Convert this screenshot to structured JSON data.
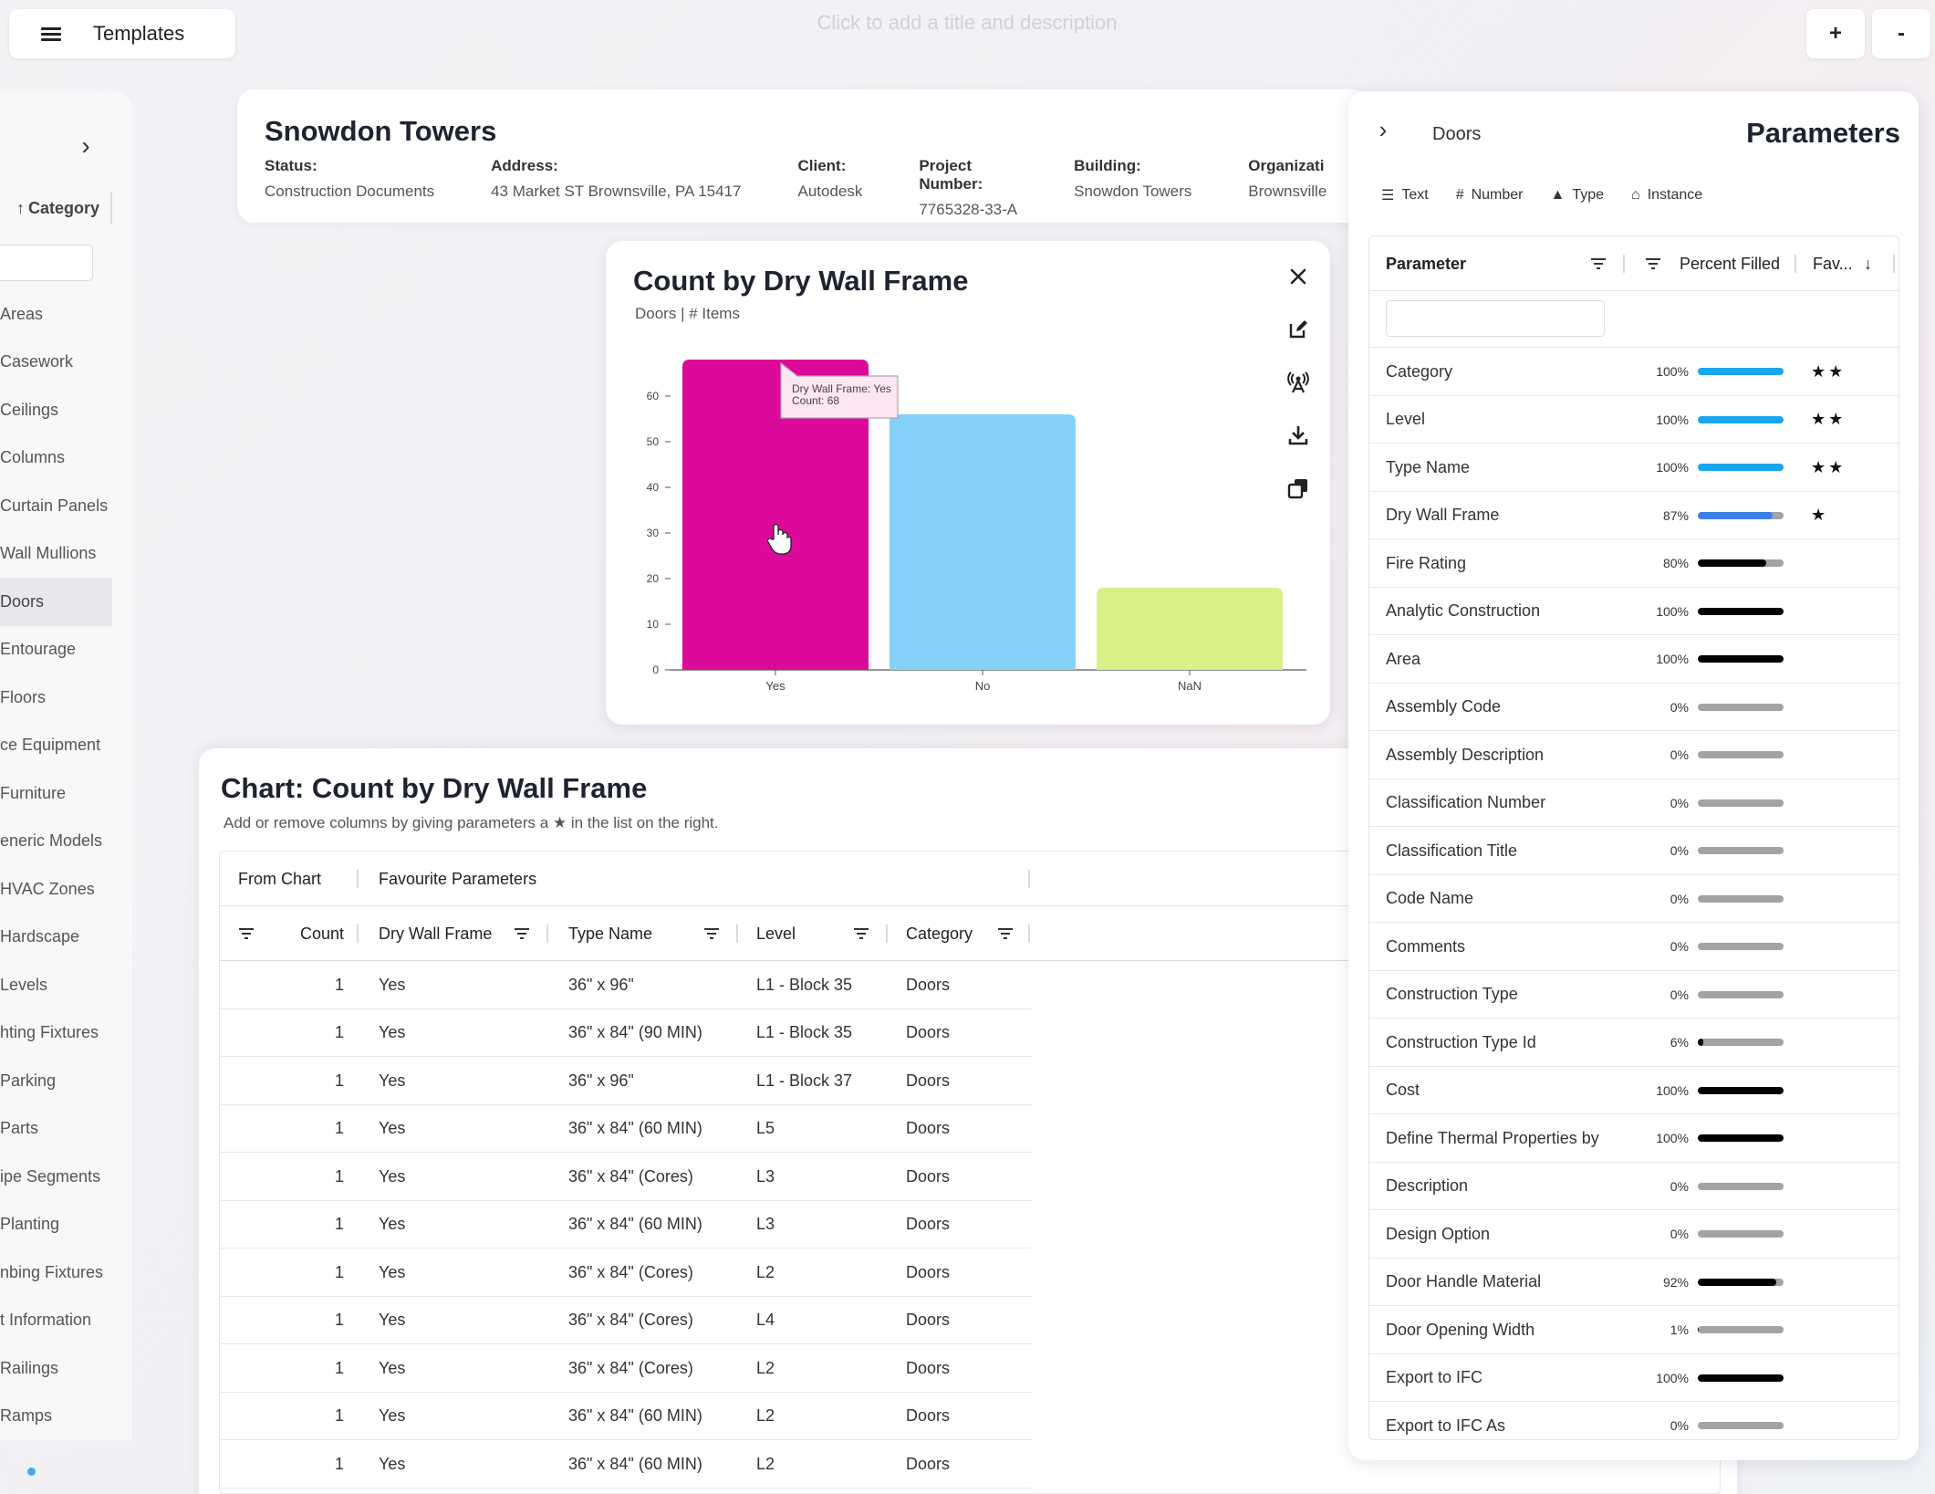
{
  "topbar": {
    "templates_label": "Templates",
    "title_hint": "Click to add a title and description",
    "zoom_in": "+",
    "zoom_out": "-"
  },
  "sidebar": {
    "sort_label": "Category",
    "items": [
      {
        "label": "Areas",
        "active": false
      },
      {
        "label": "Casework",
        "active": false
      },
      {
        "label": "Ceilings",
        "active": false
      },
      {
        "label": "Columns",
        "active": false
      },
      {
        "label": "Curtain Panels",
        "active": false
      },
      {
        "label": "Wall Mullions",
        "active": false
      },
      {
        "label": "Doors",
        "active": true
      },
      {
        "label": "Entourage",
        "active": false
      },
      {
        "label": "Floors",
        "active": false
      },
      {
        "label": "ce Equipment",
        "active": false
      },
      {
        "label": "Furniture",
        "active": false
      },
      {
        "label": "eneric Models",
        "active": false
      },
      {
        "label": "HVAC Zones",
        "active": false
      },
      {
        "label": "Hardscape",
        "active": false
      },
      {
        "label": "Levels",
        "active": false
      },
      {
        "label": "hting Fixtures",
        "active": false
      },
      {
        "label": "Parking",
        "active": false
      },
      {
        "label": "Parts",
        "active": false
      },
      {
        "label": "ipe Segments",
        "active": false
      },
      {
        "label": "Planting",
        "active": false
      },
      {
        "label": "nbing Fixtures",
        "active": false
      },
      {
        "label": "t Information",
        "active": false
      },
      {
        "label": "Railings",
        "active": false
      },
      {
        "label": "Ramps",
        "active": false
      }
    ]
  },
  "project": {
    "title": "Snowdon Towers",
    "fields": [
      {
        "label": "Status:",
        "value": "Construction Documents"
      },
      {
        "label": "Address:",
        "value": "43 Market ST Brownsville, PA 15417"
      },
      {
        "label": "Client:",
        "value": "Autodesk"
      },
      {
        "label": "Project Number:",
        "value": "7765328-33-A"
      },
      {
        "label": "Building:",
        "value": "Snowdon Towers"
      },
      {
        "label": "Organizati",
        "value": "Brownsville"
      }
    ]
  },
  "chart_card": {
    "title": "Count by Dry Wall Frame",
    "subtitle": "Doors | # Items",
    "tooltip_line1": "Dry Wall Frame: Yes",
    "tooltip_line2": "Count: 68"
  },
  "chart_data": {
    "type": "bar",
    "categories": [
      "Yes",
      "No",
      "NaN"
    ],
    "values": [
      68,
      56,
      18
    ],
    "colors": [
      "#dc0a9b",
      "#85d1fa",
      "#d8f088"
    ],
    "yticks": [
      0,
      10,
      20,
      30,
      40,
      50,
      60
    ],
    "ylim": [
      0,
      68
    ]
  },
  "table": {
    "title": "Chart: Count by Dry Wall Frame",
    "description": "Add or remove columns by giving parameters a ★ in the list on the right.",
    "group_headers": [
      "From Chart",
      "Favourite Parameters"
    ],
    "columns": [
      "Count",
      "Dry Wall Frame",
      "Type Name",
      "Level",
      "Category"
    ],
    "rows": [
      [
        "1",
        "Yes",
        "36\" x 96\"",
        "L1 - Block 35",
        "Doors"
      ],
      [
        "1",
        "Yes",
        "36\" x 84\" (90 MIN)",
        "L1 - Block 35",
        "Doors"
      ],
      [
        "1",
        "Yes",
        "36\" x 96\"",
        "L1 - Block 37",
        "Doors"
      ],
      [
        "1",
        "Yes",
        "36\" x 84\" (60 MIN)",
        "L5",
        "Doors"
      ],
      [
        "1",
        "Yes",
        "36\" x 84\" (Cores)",
        "L3",
        "Doors"
      ],
      [
        "1",
        "Yes",
        "36\" x 84\" (60 MIN)",
        "L3",
        "Doors"
      ],
      [
        "1",
        "Yes",
        "36\" x 84\" (Cores)",
        "L2",
        "Doors"
      ],
      [
        "1",
        "Yes",
        "36\" x 84\" (Cores)",
        "L4",
        "Doors"
      ],
      [
        "1",
        "Yes",
        "36\" x 84\" (Cores)",
        "L2",
        "Doors"
      ],
      [
        "1",
        "Yes",
        "36\" x 84\" (60 MIN)",
        "L2",
        "Doors"
      ],
      [
        "1",
        "Yes",
        "36\" x 84\" (60 MIN)",
        "L2",
        "Doors"
      ]
    ]
  },
  "parameters": {
    "category": "Doors",
    "title": "Parameters",
    "tabs": [
      {
        "label": "Text",
        "icon": "text-icon"
      },
      {
        "label": "Number",
        "icon": "hash-icon"
      },
      {
        "label": "Type",
        "icon": "type-icon"
      },
      {
        "label": "Instance",
        "icon": "instance-icon"
      }
    ],
    "headers": {
      "parameter": "Parameter",
      "percent": "Percent Filled",
      "fav": "Fav..."
    },
    "items": [
      {
        "name": "Category",
        "pct": "100%",
        "fill": 1.0,
        "color": "#1aa6ee",
        "fav": "★★"
      },
      {
        "name": "Level",
        "pct": "100%",
        "fill": 1.0,
        "color": "#1aa6ee",
        "fav": "★★"
      },
      {
        "name": "Type Name",
        "pct": "100%",
        "fill": 1.0,
        "color": "#1aa6ee",
        "fav": "★★"
      },
      {
        "name": "Dry Wall Frame",
        "pct": "87%",
        "fill": 0.87,
        "color": "#3b7fe6",
        "fav": "★"
      },
      {
        "name": "Fire Rating",
        "pct": "80%",
        "fill": 0.8,
        "color": "#000000",
        "fav": ""
      },
      {
        "name": "Analytic Construction",
        "pct": "100%",
        "fill": 1.0,
        "color": "#000000",
        "fav": ""
      },
      {
        "name": "Area",
        "pct": "100%",
        "fill": 1.0,
        "color": "#000000",
        "fav": ""
      },
      {
        "name": "Assembly Code",
        "pct": "0%",
        "fill": 0,
        "color": "#000000",
        "fav": ""
      },
      {
        "name": "Assembly Description",
        "pct": "0%",
        "fill": 0,
        "color": "#000000",
        "fav": ""
      },
      {
        "name": "Classification Number",
        "pct": "0%",
        "fill": 0,
        "color": "#000000",
        "fav": ""
      },
      {
        "name": "Classification Title",
        "pct": "0%",
        "fill": 0,
        "color": "#000000",
        "fav": ""
      },
      {
        "name": "Code Name",
        "pct": "0%",
        "fill": 0,
        "color": "#000000",
        "fav": ""
      },
      {
        "name": "Comments",
        "pct": "0%",
        "fill": 0,
        "color": "#000000",
        "fav": ""
      },
      {
        "name": "Construction Type",
        "pct": "0%",
        "fill": 0,
        "color": "#000000",
        "fav": ""
      },
      {
        "name": "Construction Type Id",
        "pct": "6%",
        "fill": 0.06,
        "color": "#000000",
        "fav": ""
      },
      {
        "name": "Cost",
        "pct": "100%",
        "fill": 1.0,
        "color": "#000000",
        "fav": ""
      },
      {
        "name": "Define Thermal Properties by",
        "pct": "100%",
        "fill": 1.0,
        "color": "#000000",
        "fav": ""
      },
      {
        "name": "Description",
        "pct": "0%",
        "fill": 0,
        "color": "#000000",
        "fav": ""
      },
      {
        "name": "Design Option",
        "pct": "0%",
        "fill": 0,
        "color": "#000000",
        "fav": ""
      },
      {
        "name": "Door Handle Material",
        "pct": "92%",
        "fill": 0.92,
        "color": "#000000",
        "fav": ""
      },
      {
        "name": "Door Opening Width",
        "pct": "1%",
        "fill": 0.01,
        "color": "#000000",
        "fav": ""
      },
      {
        "name": "Export to IFC",
        "pct": "100%",
        "fill": 1.0,
        "color": "#000000",
        "fav": ""
      },
      {
        "name": "Export to IFC As",
        "pct": "0%",
        "fill": 0,
        "color": "#000000",
        "fav": ""
      }
    ]
  }
}
